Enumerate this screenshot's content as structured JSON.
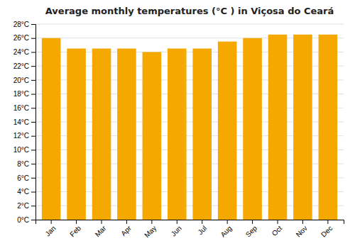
{
  "chart_data": {
    "type": "bar",
    "title": "Average monthly temperatures (°C ) in Viçosa do Ceará",
    "categories": [
      "Jan",
      "Feb",
      "Mar",
      "Apr",
      "May",
      "Jun",
      "Jul",
      "Aug",
      "Sep",
      "Oct",
      "Nov",
      "Dec"
    ],
    "values": [
      26.0,
      24.5,
      24.5,
      24.5,
      24.0,
      24.5,
      24.5,
      25.5,
      26.0,
      26.5,
      26.5,
      26.5
    ],
    "color": "#F5A800",
    "ylim": [
      0,
      28
    ],
    "yticks": [
      {
        "value": 0,
        "label": "0°C"
      },
      {
        "value": 2,
        "label": "2°C"
      },
      {
        "value": 4,
        "label": "4°C"
      },
      {
        "value": 6,
        "label": "6°C"
      },
      {
        "value": 8,
        "label": "8°C"
      },
      {
        "value": 10,
        "label": "10°C"
      },
      {
        "value": 12,
        "label": "12°C"
      },
      {
        "value": 14,
        "label": "14°C"
      },
      {
        "value": 16,
        "label": "16°C"
      },
      {
        "value": 18,
        "label": "18°C"
      },
      {
        "value": 20,
        "label": "20°C"
      },
      {
        "value": 22,
        "label": "22°C"
      },
      {
        "value": 24,
        "label": "24°C"
      },
      {
        "value": 26,
        "label": "26°C"
      },
      {
        "value": 28,
        "label": "28°C"
      }
    ],
    "grid": true
  }
}
